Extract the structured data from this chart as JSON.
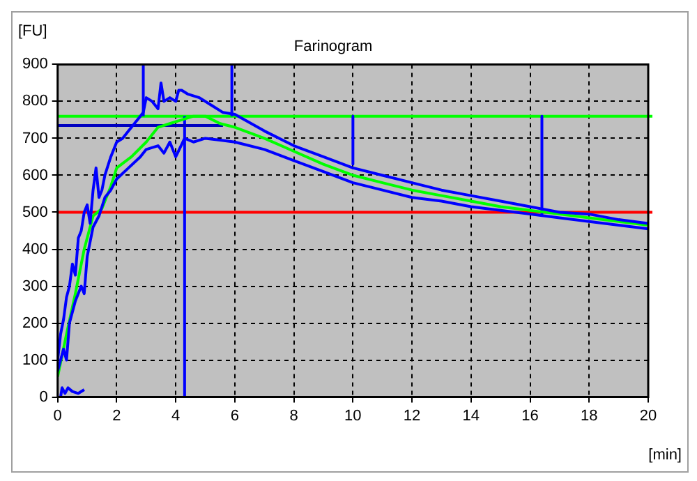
{
  "chart_data": {
    "type": "line",
    "title": "Farinogram",
    "xlabel": "[min]",
    "ylabel": "[FU]",
    "xlim": [
      0,
      20
    ],
    "ylim": [
      0,
      900
    ],
    "xticks": [
      0,
      2,
      4,
      6,
      8,
      10,
      12,
      14,
      16,
      18,
      20
    ],
    "yticks": [
      0,
      100,
      200,
      300,
      400,
      500,
      600,
      700,
      800,
      900
    ],
    "grid": true,
    "legend": false,
    "marker": "none",
    "series": [
      {
        "color": "#0000ff",
        "x": [
          0,
          0.1,
          0.2,
          0.3,
          0.4,
          0.5,
          0.6,
          0.7,
          0.8,
          0.9,
          1,
          1.1,
          1.2,
          1.3,
          1.4,
          1.5,
          1.6,
          1.8,
          2,
          2.2,
          2.4,
          2.6,
          2.8,
          2.9,
          3,
          3.2,
          3.4,
          3.5,
          3.6,
          3.8,
          4,
          4.1,
          4.2,
          4.4,
          4.8,
          5.2,
          5.6,
          6,
          7,
          8,
          9,
          10,
          11,
          12,
          13,
          14,
          15,
          16,
          17,
          18,
          19,
          20
        ],
        "values": [
          100,
          170,
          210,
          270,
          300,
          360,
          330,
          430,
          450,
          500,
          520,
          470,
          560,
          620,
          540,
          560,
          600,
          650,
          690,
          700,
          720,
          740,
          760,
          770,
          810,
          800,
          780,
          850,
          800,
          810,
          800,
          830,
          830,
          820,
          810,
          790,
          770,
          765,
          720,
          680,
          650,
          620,
          600,
          580,
          560,
          545,
          530,
          515,
          500,
          495,
          480,
          470
        ]
      },
      {
        "color": "#0000ff",
        "x": [
          0,
          0.2,
          0.3,
          0.4,
          0.6,
          0.8,
          0.9,
          1,
          1.2,
          1.4,
          1.6,
          1.8,
          2,
          2.4,
          2.8,
          3,
          3.4,
          3.6,
          3.8,
          4,
          4.3,
          4.6,
          5,
          5.5,
          6,
          7,
          8,
          9,
          10,
          11,
          12,
          13,
          14,
          15,
          16,
          17,
          18,
          19,
          20
        ],
        "values": [
          70,
          130,
          100,
          200,
          260,
          300,
          280,
          380,
          460,
          490,
          540,
          560,
          590,
          620,
          650,
          670,
          680,
          660,
          690,
          650,
          700,
          690,
          700,
          695,
          690,
          670,
          640,
          610,
          580,
          560,
          540,
          530,
          515,
          505,
          495,
          485,
          475,
          465,
          455
        ]
      },
      {
        "color": "#00ff00",
        "x": [
          0,
          0.3,
          0.6,
          0.9,
          1.2,
          1.5,
          1.8,
          2,
          2.5,
          3,
          3.4,
          3.8,
          4.2,
          4.6,
          5,
          5.5,
          6,
          7,
          8,
          9,
          10,
          11,
          12,
          13,
          14,
          15,
          16,
          17,
          18,
          19,
          20
        ],
        "values": [
          55,
          170,
          280,
          400,
          490,
          510,
          570,
          620,
          650,
          690,
          730,
          740,
          750,
          760,
          760,
          740,
          730,
          700,
          665,
          630,
          600,
          580,
          560,
          545,
          530,
          515,
          505,
          495,
          485,
          475,
          465
        ]
      },
      {
        "color": "#0000ff",
        "x": [
          0.1,
          0.15,
          0.25,
          0.35,
          0.5,
          0.7,
          0.9
        ],
        "values": [
          0,
          25,
          10,
          25,
          15,
          10,
          20
        ]
      },
      {
        "color": "#0000c0",
        "x": [
          0,
          5.6
        ],
        "values": [
          735,
          735
        ]
      },
      {
        "color": "#0000ff",
        "x": [
          2.9,
          2.9
        ],
        "values": [
          760,
          900
        ]
      },
      {
        "color": "#0000ff",
        "x": [
          4.3,
          4.3
        ],
        "values": [
          0,
          760
        ]
      },
      {
        "color": "#0000ff",
        "x": [
          5.9,
          5.9
        ],
        "values": [
          760,
          900
        ]
      },
      {
        "color": "#0000ff",
        "x": [
          10,
          10
        ],
        "values": [
          760,
          630
        ]
      },
      {
        "color": "#0000ff",
        "x": [
          16.4,
          16.4
        ],
        "values": [
          760,
          495
        ]
      }
    ],
    "ref_lines": [
      {
        "axis": "y",
        "value": 760,
        "color": "#00ff00"
      },
      {
        "axis": "y",
        "value": 500,
        "color": "#ff0000"
      }
    ]
  }
}
